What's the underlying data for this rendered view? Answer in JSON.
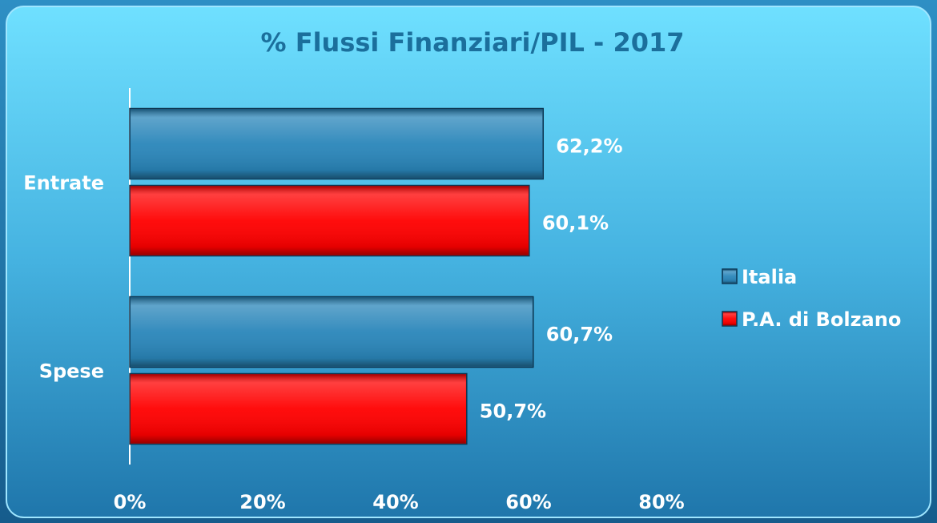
{
  "chart_data": {
    "type": "hbar",
    "title": "% Flussi Finanziari/PIL - 2017",
    "categories": [
      "Entrate",
      "Spese"
    ],
    "series": [
      {
        "name": "Italia",
        "color": "#2a86ba",
        "values": [
          62.2,
          60.7
        ],
        "value_labels": [
          "62,2%",
          "60,7%"
        ]
      },
      {
        "name": "P.A. di Bolzano",
        "color": "#ff0000",
        "values": [
          60.1,
          50.7
        ],
        "value_labels": [
          "60,1%",
          "50,7%"
        ]
      }
    ],
    "xlim": [
      0,
      80
    ],
    "xticks": [
      {
        "value": 0,
        "label": "0%"
      },
      {
        "value": 20,
        "label": "20%"
      },
      {
        "value": 40,
        "label": "40%"
      },
      {
        "value": 60,
        "label": "60%"
      },
      {
        "value": 80,
        "label": "80%"
      }
    ],
    "grid": false,
    "legend": "right"
  }
}
